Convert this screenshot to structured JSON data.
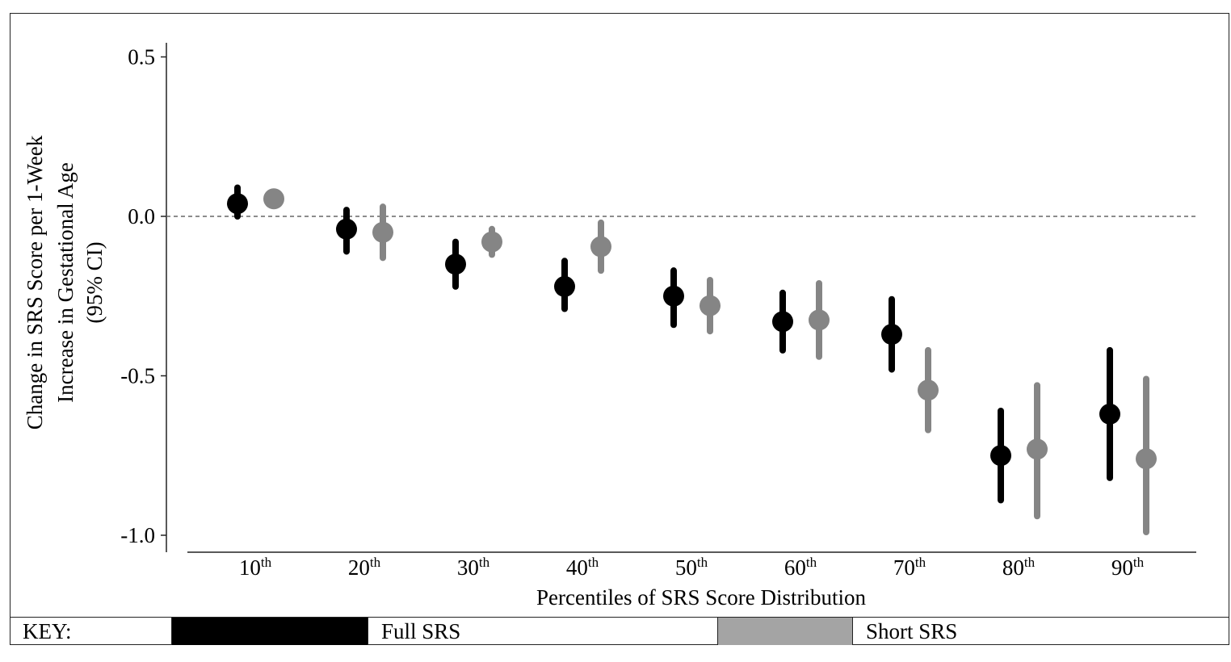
{
  "chart_data": {
    "type": "scatter",
    "xlabel": "Percentiles of SRS Score Distribution",
    "ylabel_lines": [
      "Change in SRS Score per 1-Week",
      "Increase in Gestational Age",
      "(95% CI)"
    ],
    "categories": [
      {
        "num": "10",
        "sup": "th"
      },
      {
        "num": "20",
        "sup": "th"
      },
      {
        "num": "30",
        "sup": "th"
      },
      {
        "num": "40",
        "sup": "th"
      },
      {
        "num": "50",
        "sup": "th"
      },
      {
        "num": "60",
        "sup": "th"
      },
      {
        "num": "70",
        "sup": "th"
      },
      {
        "num": "80",
        "sup": "th"
      },
      {
        "num": "90",
        "sup": "th"
      }
    ],
    "yticks": [
      {
        "value": 0.5,
        "label": "0.5"
      },
      {
        "value": 0.0,
        "label": "0.0"
      },
      {
        "value": -0.5,
        "label": "-0.5"
      },
      {
        "value": -1.0,
        "label": "-1.0"
      }
    ],
    "ylim": [
      -1.05,
      0.55
    ],
    "reference_line": 0,
    "series": [
      {
        "name": "Full SRS",
        "color": "#000000",
        "values": [
          0.04,
          -0.04,
          -0.15,
          -0.22,
          -0.25,
          -0.33,
          -0.37,
          -0.75,
          -0.62
        ],
        "ci_low": [
          0.0,
          -0.11,
          -0.22,
          -0.29,
          -0.34,
          -0.42,
          -0.48,
          -0.89,
          -0.82
        ],
        "ci_high": [
          0.09,
          0.02,
          -0.08,
          -0.14,
          -0.17,
          -0.24,
          -0.26,
          -0.61,
          -0.42
        ]
      },
      {
        "name": "Short SRS",
        "color": "#858585",
        "values": [
          0.055,
          -0.05,
          -0.08,
          -0.095,
          -0.28,
          -0.325,
          -0.545,
          -0.73,
          -0.76
        ],
        "ci_low": [
          0.055,
          -0.13,
          -0.12,
          -0.17,
          -0.36,
          -0.44,
          -0.67,
          -0.94,
          -0.99
        ],
        "ci_high": [
          0.055,
          0.03,
          -0.04,
          -0.02,
          -0.2,
          -0.21,
          -0.42,
          -0.53,
          -0.51
        ]
      }
    ]
  },
  "key": {
    "label": "KEY:",
    "full_label": "Full SRS",
    "full_color": "#000000",
    "short_label": "Short SRS",
    "short_color": "#a4a4a4"
  }
}
